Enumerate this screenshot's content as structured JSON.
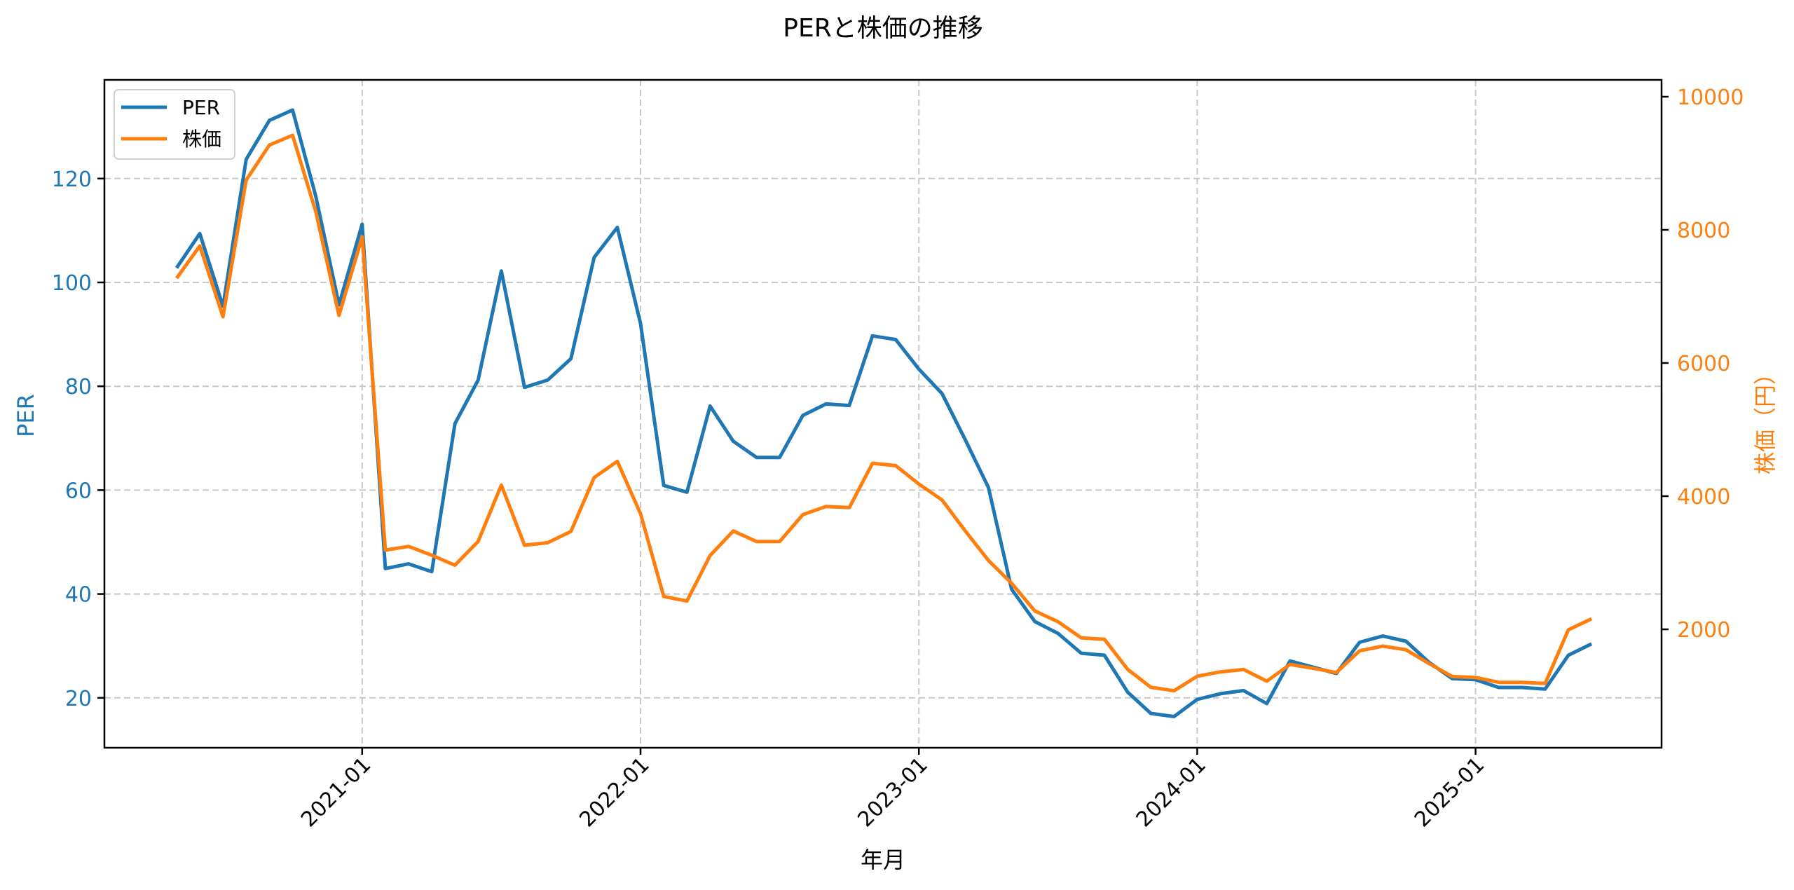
{
  "chart_data": {
    "type": "line",
    "title": "PERと株価の推移",
    "xlabel": "年月",
    "ylabel_left": "PER",
    "ylabel_right": "株価（円）",
    "x": [
      "2020-05",
      "2020-06",
      "2020-07",
      "2020-08",
      "2020-09",
      "2020-10",
      "2020-11",
      "2020-12",
      "2021-01",
      "2021-02",
      "2021-03",
      "2021-04",
      "2021-05",
      "2021-06",
      "2021-07",
      "2021-08",
      "2021-09",
      "2021-10",
      "2021-11",
      "2021-12",
      "2022-01",
      "2022-02",
      "2022-03",
      "2022-04",
      "2022-05",
      "2022-06",
      "2022-07",
      "2022-08",
      "2022-09",
      "2022-10",
      "2022-11",
      "2022-12",
      "2023-01",
      "2023-02",
      "2023-03",
      "2023-04",
      "2023-05",
      "2023-06",
      "2023-07",
      "2023-08",
      "2023-09",
      "2023-10",
      "2023-11",
      "2023-12",
      "2024-01",
      "2024-02",
      "2024-03",
      "2024-04",
      "2024-05",
      "2024-06",
      "2024-07",
      "2024-08",
      "2024-09",
      "2024-10",
      "2024-11",
      "2024-12",
      "2025-01",
      "2025-02",
      "2025-03",
      "2025-04",
      "2025-05",
      "2025-06"
    ],
    "series": [
      {
        "name": "PER",
        "axis": "left",
        "color": "#1f77b4",
        "values": [
          102.8,
          109.4,
          95.4,
          123.7,
          131.2,
          133.2,
          116.6,
          95.7,
          111.2,
          44.9,
          45.8,
          44.3,
          72.8,
          81.2,
          102.2,
          79.8,
          81.2,
          85.3,
          104.8,
          110.6,
          92.1,
          60.9,
          59.6,
          76.2,
          69.4,
          66.3,
          66.3,
          74.4,
          76.6,
          76.3,
          89.7,
          89.0,
          83.3,
          78.6,
          69.7,
          60.5,
          40.9,
          34.7,
          32.4,
          28.6,
          28.2,
          21.1,
          17.0,
          16.4,
          19.7,
          20.8,
          21.4,
          18.9,
          27.1,
          25.9,
          24.7,
          30.7,
          31.9,
          30.9,
          26.8,
          23.7,
          23.5,
          22.0,
          22.0,
          21.7,
          28.2,
          30.4
        ]
      },
      {
        "name": "株価",
        "axis": "right",
        "color": "#ff7f0e",
        "values": [
          7274,
          7758,
          6695,
          8747,
          9274,
          9421,
          8274,
          6716,
          7895,
          3189,
          3245,
          3113,
          2963,
          3320,
          4166,
          3263,
          3301,
          3470,
          4279,
          4523,
          3737,
          2494,
          2424,
          3108,
          3477,
          3319,
          3319,
          3723,
          3845,
          3828,
          4494,
          4459,
          4182,
          3942,
          3478,
          3034,
          2691,
          2275,
          2114,
          1872,
          1851,
          1399,
          1129,
          1077,
          1295,
          1361,
          1396,
          1221,
          1473,
          1414,
          1351,
          1677,
          1747,
          1694,
          1484,
          1291,
          1277,
          1203,
          1203,
          1186,
          1993,
          2158
        ]
      }
    ],
    "xticks": [
      "2021-01",
      "2022-01",
      "2023-01",
      "2024-01",
      "2025-01"
    ],
    "yticks_left": [
      20,
      40,
      60,
      80,
      100,
      120
    ],
    "yticks_right": [
      2000,
      4000,
      6000,
      8000,
      10000
    ],
    "ylim_left": [
      10.4,
      139.0
    ],
    "ylim_right": [
      212,
      10253
    ],
    "grid": true,
    "legend_position": "upper left",
    "legend": [
      "PER",
      "株価"
    ]
  }
}
